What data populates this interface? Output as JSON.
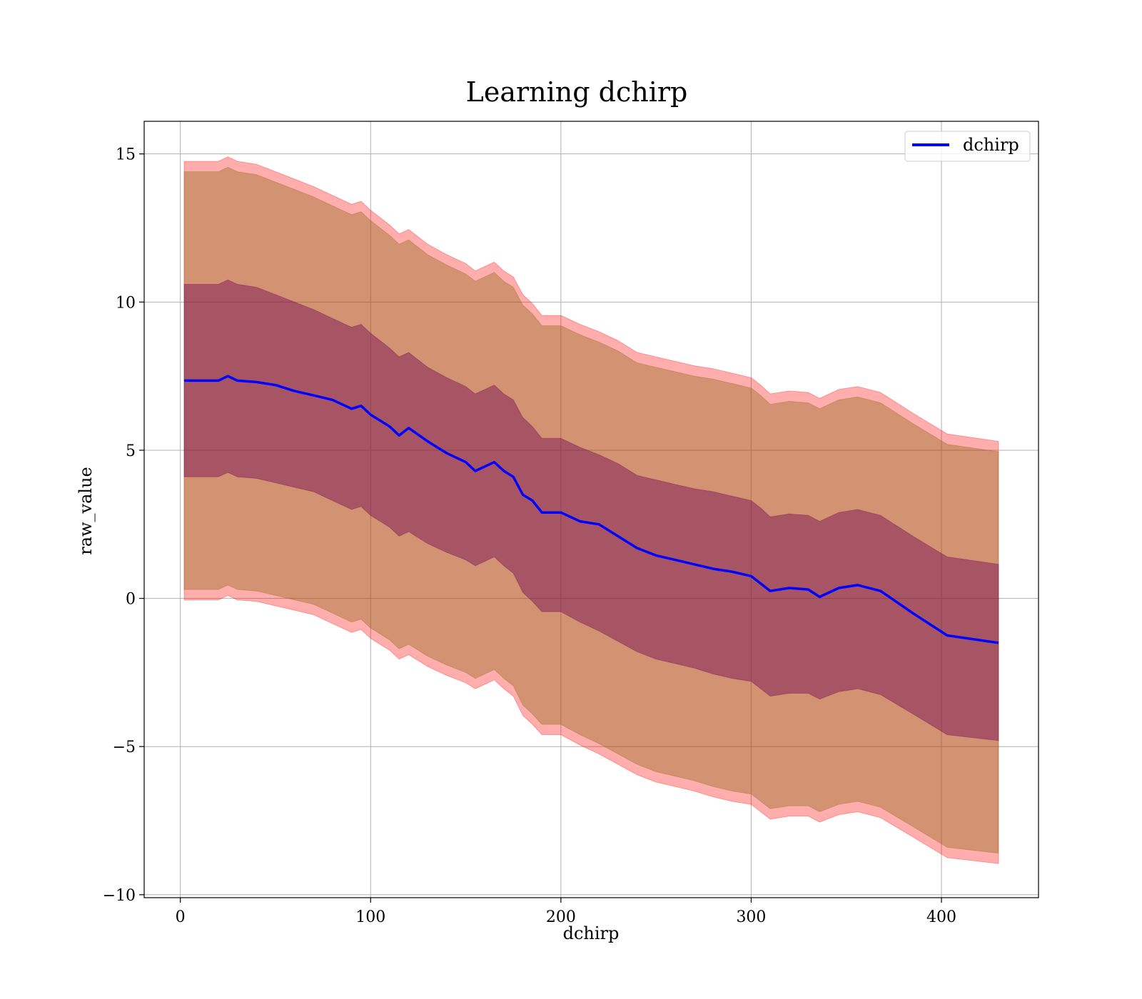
{
  "chart_data": {
    "type": "line",
    "title": "Learning dchirp",
    "xlabel": "dchirp",
    "ylabel": "raw_value",
    "xlim": [
      -19,
      451
    ],
    "ylim": [
      -10.1,
      16.1
    ],
    "xticks": [
      0,
      100,
      200,
      300,
      400
    ],
    "xtick_labels": [
      "0",
      "100",
      "200",
      "300",
      "400"
    ],
    "yticks": [
      -10,
      -5,
      0,
      5,
      10,
      15
    ],
    "ytick_labels": [
      "−10",
      "−5",
      "0",
      "5",
      "10",
      "15"
    ],
    "grid": true,
    "legend": {
      "placement": "top-right",
      "entries": [
        "dchirp"
      ]
    },
    "colors": {
      "line": "#0000ff",
      "outer_band": "#ff0000",
      "middle_band": "#8b6914",
      "inner_band": "#6b0050"
    },
    "series": [
      {
        "name": "dchirp",
        "x": [
          2,
          10,
          20,
          25,
          30,
          40,
          50,
          60,
          70,
          80,
          90,
          95,
          100,
          110,
          115,
          120,
          130,
          140,
          150,
          155,
          160,
          165,
          170,
          175,
          180,
          185,
          190,
          200,
          210,
          220,
          230,
          240,
          250,
          260,
          270,
          280,
          290,
          300,
          305,
          310,
          320,
          330,
          336,
          346,
          356,
          368,
          385,
          403,
          430
        ],
        "y": [
          7.35,
          7.35,
          7.35,
          7.5,
          7.35,
          7.3,
          7.2,
          7.0,
          6.85,
          6.7,
          6.4,
          6.5,
          6.2,
          5.8,
          5.5,
          5.75,
          5.3,
          4.9,
          4.6,
          4.3,
          4.45,
          4.6,
          4.3,
          4.1,
          3.5,
          3.3,
          2.9,
          2.9,
          2.6,
          2.5,
          2.1,
          1.7,
          1.45,
          1.3,
          1.15,
          1.0,
          0.9,
          0.75,
          0.5,
          0.25,
          0.35,
          0.3,
          0.05,
          0.35,
          0.45,
          0.25,
          -0.5,
          -1.25,
          -1.5
        ]
      }
    ],
    "bands": [
      {
        "label": "outer",
        "upper": [
          14.75,
          14.75,
          14.75,
          14.9,
          14.75,
          14.65,
          14.4,
          14.15,
          13.9,
          13.6,
          13.3,
          13.4,
          13.1,
          12.6,
          12.3,
          12.45,
          11.95,
          11.6,
          11.3,
          11.05,
          11.2,
          11.35,
          11.05,
          10.85,
          10.25,
          9.95,
          9.55,
          9.55,
          9.25,
          9.0,
          8.7,
          8.3,
          8.15,
          8.0,
          7.85,
          7.75,
          7.6,
          7.45,
          7.2,
          6.9,
          7.0,
          6.95,
          6.75,
          7.05,
          7.15,
          6.95,
          6.25,
          5.55,
          5.3
        ],
        "lower": [
          -0.05,
          -0.05,
          -0.05,
          0.1,
          -0.05,
          -0.1,
          -0.25,
          -0.4,
          -0.55,
          -0.85,
          -1.15,
          -1.05,
          -1.35,
          -1.75,
          -2.05,
          -1.9,
          -2.3,
          -2.6,
          -2.85,
          -3.05,
          -2.9,
          -2.75,
          -3.05,
          -3.3,
          -3.95,
          -4.25,
          -4.6,
          -4.6,
          -4.95,
          -5.25,
          -5.6,
          -5.95,
          -6.2,
          -6.35,
          -6.5,
          -6.7,
          -6.85,
          -6.95,
          -7.2,
          -7.45,
          -7.35,
          -7.35,
          -7.55,
          -7.3,
          -7.2,
          -7.4,
          -8.05,
          -8.75,
          -8.95
        ]
      },
      {
        "label": "middle",
        "upper": [
          14.4,
          14.4,
          14.4,
          14.55,
          14.4,
          14.3,
          14.05,
          13.8,
          13.55,
          13.25,
          12.95,
          13.05,
          12.75,
          12.25,
          11.95,
          12.1,
          11.6,
          11.25,
          10.95,
          10.7,
          10.85,
          11.0,
          10.7,
          10.5,
          9.9,
          9.6,
          9.2,
          9.2,
          8.9,
          8.65,
          8.35,
          7.95,
          7.8,
          7.65,
          7.5,
          7.4,
          7.25,
          7.1,
          6.85,
          6.55,
          6.65,
          6.6,
          6.4,
          6.7,
          6.8,
          6.6,
          5.9,
          5.2,
          4.95
        ],
        "lower": [
          0.3,
          0.3,
          0.3,
          0.45,
          0.3,
          0.25,
          0.1,
          -0.05,
          -0.2,
          -0.5,
          -0.8,
          -0.7,
          -1.0,
          -1.4,
          -1.7,
          -1.55,
          -1.95,
          -2.25,
          -2.5,
          -2.7,
          -2.55,
          -2.4,
          -2.7,
          -2.95,
          -3.6,
          -3.9,
          -4.25,
          -4.25,
          -4.6,
          -4.9,
          -5.25,
          -5.6,
          -5.85,
          -6.0,
          -6.15,
          -6.35,
          -6.5,
          -6.6,
          -6.85,
          -7.1,
          -7.0,
          -7.0,
          -7.2,
          -6.95,
          -6.85,
          -7.05,
          -7.7,
          -8.4,
          -8.6
        ]
      },
      {
        "label": "inner",
        "upper": [
          10.6,
          10.6,
          10.6,
          10.75,
          10.6,
          10.5,
          10.25,
          10.0,
          9.75,
          9.45,
          9.15,
          9.25,
          8.95,
          8.45,
          8.15,
          8.3,
          7.8,
          7.45,
          7.15,
          6.9,
          7.05,
          7.2,
          6.9,
          6.7,
          6.1,
          5.8,
          5.4,
          5.4,
          5.1,
          4.85,
          4.55,
          4.15,
          4.0,
          3.85,
          3.7,
          3.6,
          3.45,
          3.3,
          3.05,
          2.75,
          2.85,
          2.8,
          2.6,
          2.9,
          3.0,
          2.8,
          2.1,
          1.4,
          1.15
        ],
        "lower": [
          4.1,
          4.1,
          4.1,
          4.25,
          4.1,
          4.05,
          3.9,
          3.75,
          3.6,
          3.3,
          3.0,
          3.1,
          2.8,
          2.4,
          2.1,
          2.25,
          1.85,
          1.55,
          1.3,
          1.1,
          1.25,
          1.4,
          1.1,
          0.85,
          0.2,
          -0.1,
          -0.45,
          -0.45,
          -0.8,
          -1.1,
          -1.45,
          -1.8,
          -2.05,
          -2.2,
          -2.35,
          -2.55,
          -2.7,
          -2.8,
          -3.05,
          -3.3,
          -3.2,
          -3.2,
          -3.4,
          -3.15,
          -3.05,
          -3.25,
          -3.9,
          -4.6,
          -4.8
        ]
      }
    ]
  }
}
